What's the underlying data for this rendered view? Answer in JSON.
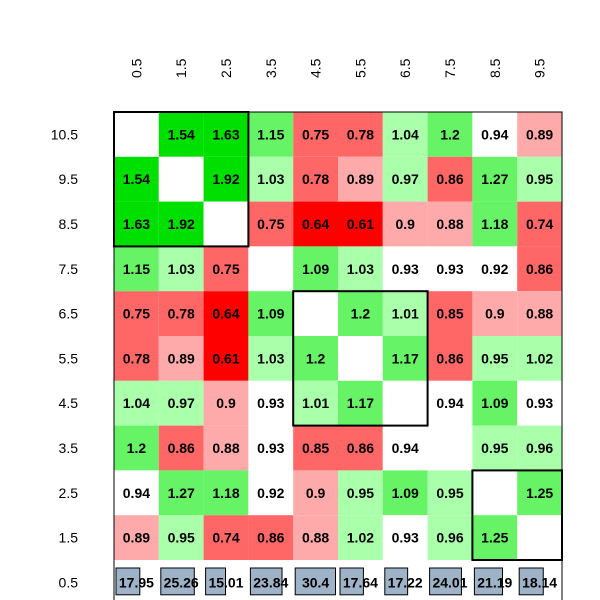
{
  "chart_data": {
    "type": "heatmap",
    "title": "",
    "xlabel": "",
    "ylabel": "",
    "x_tick_labels": [
      "0.5",
      "1.5",
      "2.5",
      "3.5",
      "4.5",
      "5.5",
      "6.5",
      "7.5",
      "8.5",
      "9.5"
    ],
    "y_tick_labels": [
      "10.5",
      "9.5",
      "8.5",
      "7.5",
      "6.5",
      "5.5",
      "4.5",
      "3.5",
      "2.5",
      "1.5",
      "0.5"
    ],
    "matrix": [
      [
        null,
        1.54,
        1.63,
        1.15,
        0.75,
        0.78,
        1.04,
        1.2,
        0.94,
        0.89
      ],
      [
        1.54,
        null,
        1.92,
        1.03,
        0.78,
        0.89,
        0.97,
        0.86,
        1.27,
        0.95
      ],
      [
        1.63,
        1.92,
        null,
        0.75,
        0.64,
        0.61,
        0.9,
        0.88,
        1.18,
        0.74
      ],
      [
        1.15,
        1.03,
        0.75,
        null,
        1.09,
        1.03,
        0.93,
        0.93,
        0.92,
        0.86
      ],
      [
        0.75,
        0.78,
        0.64,
        1.09,
        null,
        1.2,
        1.01,
        0.85,
        0.9,
        0.88
      ],
      [
        0.78,
        0.89,
        0.61,
        1.03,
        1.2,
        null,
        1.17,
        0.86,
        0.95,
        1.02
      ],
      [
        1.04,
        0.97,
        0.9,
        0.93,
        1.01,
        1.17,
        null,
        0.94,
        1.09,
        0.93
      ],
      [
        1.2,
        0.86,
        0.88,
        0.93,
        0.85,
        0.86,
        0.94,
        null,
        0.95,
        0.96
      ],
      [
        0.94,
        1.27,
        1.18,
        0.92,
        0.9,
        0.95,
        1.09,
        0.95,
        null,
        1.25
      ],
      [
        0.89,
        0.95,
        0.74,
        0.86,
        0.88,
        1.02,
        0.93,
        0.96,
        1.25,
        null
      ]
    ],
    "bottom_row_values": [
      "17.95",
      "25.26",
      "15.01",
      "23.84",
      "30.4",
      "17.64",
      "17.22",
      "24.01",
      "21.19",
      "18.14"
    ],
    "bottom_row_bar_color": "#9fb3c8",
    "cluster_groups": [
      [
        1,
        2,
        3
      ],
      [
        5,
        6,
        7
      ],
      [
        9,
        10
      ]
    ],
    "colors": {
      "white": "#ffffff",
      "high_light": "#aaffaa",
      "high_mid": "#66f466",
      "high_strong": "#00e000",
      "low_light": "#ffaaaa",
      "low_mid": "#ff6666",
      "low_strong": "#ff0000",
      "border": "#000000"
    }
  }
}
